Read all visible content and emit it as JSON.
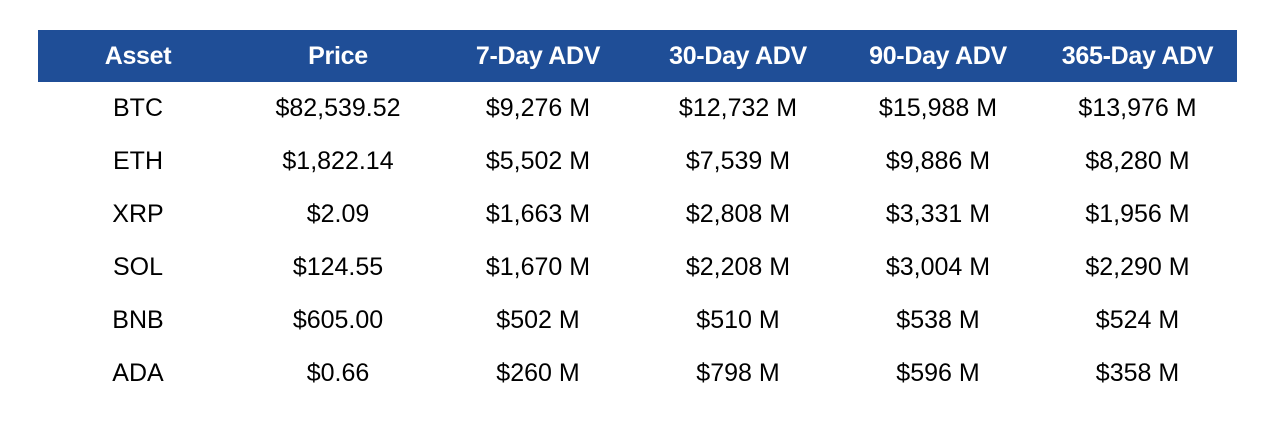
{
  "table": {
    "header_color": "#1f4e97",
    "columns": [
      "Asset",
      "Price",
      "7-Day ADV",
      "30-Day ADV",
      "90-Day ADV",
      "365-Day ADV"
    ],
    "rows": [
      [
        "BTC",
        "$82,539.52",
        "$9,276 M",
        "$12,732 M",
        "$15,988 M",
        "$13,976 M"
      ],
      [
        "ETH",
        "$1,822.14",
        "$5,502 M",
        "$7,539 M",
        "$9,886 M",
        "$8,280 M"
      ],
      [
        "XRP",
        "$2.09",
        "$1,663 M",
        "$2,808 M",
        "$3,331 M",
        "$1,956 M"
      ],
      [
        "SOL",
        "$124.55",
        "$1,670 M",
        "$2,208 M",
        "$3,004 M",
        "$2,290 M"
      ],
      [
        "BNB",
        "$605.00",
        "$502 M",
        "$510 M",
        "$538 M",
        "$524 M"
      ],
      [
        "ADA",
        "$0.66",
        "$260 M",
        "$798 M",
        "$596 M",
        "$358 M"
      ]
    ]
  }
}
